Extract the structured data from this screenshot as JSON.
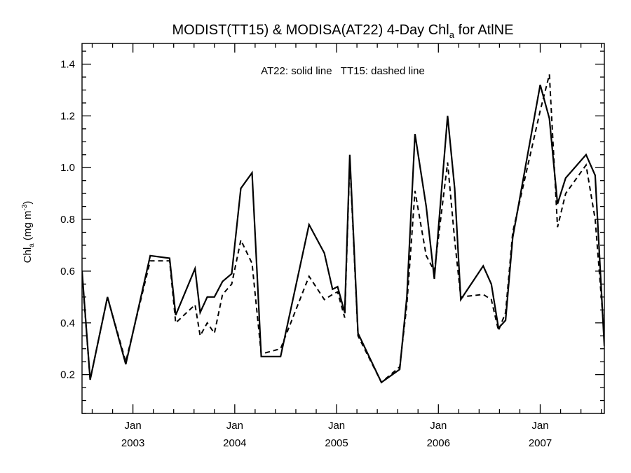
{
  "chart_data": {
    "type": "line",
    "title_main": "MODIST(TT15) & MODISA(AT22) 4-Day Chl",
    "title_sub": "a",
    "title_tail": " for AtlNE",
    "annotation": "AT22: solid line   TT15: dashed line",
    "ylabel_main": "Chl",
    "ylabel_sub": "a",
    "ylabel_units": " (mg m",
    "ylabel_exp": "-3",
    "ylabel_close": ")",
    "ylim": [
      0.05,
      1.48
    ],
    "xlim": [
      2002.5,
      2007.63
    ],
    "grid": false,
    "y_ticks": [
      {
        "value": 0.2,
        "label": "0.2"
      },
      {
        "value": 0.4,
        "label": "0.4"
      },
      {
        "value": 0.6,
        "label": "0.6"
      },
      {
        "value": 0.8,
        "label": "0.8"
      },
      {
        "value": 1.0,
        "label": "1.0"
      },
      {
        "value": 1.2,
        "label": "1.2"
      },
      {
        "value": 1.4,
        "label": "1.4"
      }
    ],
    "x_ticks": [
      {
        "value": 2003.0,
        "month": "Jan",
        "year": "2003"
      },
      {
        "value": 2004.0,
        "month": "Jan",
        "year": "2004"
      },
      {
        "value": 2005.0,
        "month": "Jan",
        "year": "2005"
      },
      {
        "value": 2006.0,
        "month": "Jan",
        "year": "2006"
      },
      {
        "value": 2007.0,
        "month": "Jan",
        "year": "2007"
      }
    ],
    "series": [
      {
        "style": "solid",
        "x": [
          2002.5,
          2002.58,
          2002.75,
          2002.93,
          2003.17,
          2003.36,
          2003.42,
          2003.61,
          2003.66,
          2003.73,
          2003.8,
          2003.88,
          2003.97,
          2004.06,
          2004.17,
          2004.26,
          2004.45,
          2004.73,
          2004.88,
          2004.96,
          2005.01,
          2005.08,
          2005.13,
          2005.21,
          2005.44,
          2005.62,
          2005.69,
          2005.77,
          2005.88,
          2005.96,
          2006.09,
          2006.16,
          2006.22,
          2006.44,
          2006.52,
          2006.59,
          2006.66,
          2006.73,
          2007.0,
          2007.09,
          2007.17,
          2007.25,
          2007.45,
          2007.54,
          2007.63
        ],
        "y": [
          0.6,
          0.18,
          0.5,
          0.24,
          0.66,
          0.65,
          0.43,
          0.61,
          0.44,
          0.5,
          0.5,
          0.56,
          0.59,
          0.92,
          0.98,
          0.27,
          0.27,
          0.78,
          0.67,
          0.53,
          0.54,
          0.44,
          1.05,
          0.36,
          0.17,
          0.22,
          0.5,
          1.13,
          0.85,
          0.57,
          1.2,
          0.92,
          0.49,
          0.62,
          0.55,
          0.38,
          0.41,
          0.73,
          1.32,
          1.19,
          0.86,
          0.96,
          1.05,
          0.97,
          0.31
        ]
      },
      {
        "style": "dashed",
        "x": [
          2002.5,
          2002.58,
          2002.75,
          2002.93,
          2003.17,
          2003.36,
          2003.42,
          2003.61,
          2003.66,
          2003.73,
          2003.8,
          2003.88,
          2003.97,
          2004.06,
          2004.17,
          2004.26,
          2004.45,
          2004.73,
          2004.88,
          2004.96,
          2005.01,
          2005.08,
          2005.13,
          2005.21,
          2005.44,
          2005.62,
          2005.69,
          2005.77,
          2005.88,
          2005.96,
          2006.09,
          2006.16,
          2006.22,
          2006.44,
          2006.52,
          2006.59,
          2006.66,
          2006.73,
          2007.0,
          2007.09,
          2007.17,
          2007.25,
          2007.45,
          2007.54,
          2007.63
        ],
        "y": [
          0.59,
          0.18,
          0.5,
          0.25,
          0.64,
          0.64,
          0.4,
          0.47,
          0.35,
          0.4,
          0.36,
          0.51,
          0.55,
          0.72,
          0.63,
          0.28,
          0.3,
          0.58,
          0.49,
          0.51,
          0.52,
          0.42,
          1.03,
          0.35,
          0.17,
          0.23,
          0.47,
          0.91,
          0.66,
          0.6,
          1.02,
          0.72,
          0.5,
          0.51,
          0.49,
          0.37,
          0.44,
          0.75,
          1.22,
          1.36,
          0.77,
          0.9,
          1.01,
          0.8,
          0.35
        ]
      }
    ]
  }
}
